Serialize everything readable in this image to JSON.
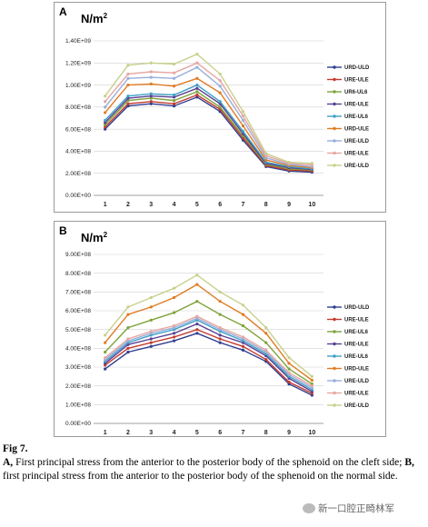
{
  "chart_data": [
    {
      "panel": "A",
      "type": "line",
      "ylabel": "N/m",
      "ylabel_sup": "2",
      "categories": [
        "1",
        "2",
        "3",
        "4",
        "5",
        "6",
        "7",
        "8",
        "9",
        "10"
      ],
      "ylim": [
        0,
        1400000000.0
      ],
      "yticks": [
        0,
        200000000.0,
        400000000.0,
        600000000.0,
        800000000.0,
        1000000000.0,
        1200000000.0,
        1400000000.0
      ],
      "ytick_labels": [
        "0.00E+00",
        "2.00E+08",
        "4.00E+08",
        "6.00E+08",
        "8.00E+08",
        "1.00E+09",
        "1.20E+09",
        "1.40E+09"
      ],
      "grid": true,
      "legend": "right",
      "series": [
        {
          "name": "URD-ULD",
          "color": "#2f3f8f",
          "values": [
            600000000.0,
            810000000.0,
            830000000.0,
            810000000.0,
            890000000.0,
            760000000.0,
            500000000.0,
            260000000.0,
            220000000.0,
            210000000.0
          ]
        },
        {
          "name": "URE-ULE",
          "color": "#c23b30",
          "values": [
            620000000.0,
            830000000.0,
            850000000.0,
            830000000.0,
            910000000.0,
            780000000.0,
            520000000.0,
            270000000.0,
            230000000.0,
            220000000.0
          ]
        },
        {
          "name": "UR6-UL6",
          "color": "#7ea33a",
          "values": [
            640000000.0,
            860000000.0,
            880000000.0,
            860000000.0,
            940000000.0,
            800000000.0,
            540000000.0,
            280000000.0,
            240000000.0,
            230000000.0
          ]
        },
        {
          "name": "URE-ULE",
          "color": "#5a3f94",
          "values": [
            660000000.0,
            880000000.0,
            900000000.0,
            890000000.0,
            970000000.0,
            830000000.0,
            560000000.0,
            290000000.0,
            250000000.0,
            235000000.0
          ]
        },
        {
          "name": "URE-UL6",
          "color": "#3fa0c6",
          "values": [
            680000000.0,
            900000000.0,
            920000000.0,
            910000000.0,
            1000000000.0,
            850000000.0,
            580000000.0,
            300000000.0,
            260000000.0,
            240000000.0
          ]
        },
        {
          "name": "URD-ULE",
          "color": "#e07b22",
          "values": [
            750000000.0,
            1000000000.0,
            1010000000.0,
            990000000.0,
            1060000000.0,
            930000000.0,
            630000000.0,
            320000000.0,
            270000000.0,
            250000000.0
          ]
        },
        {
          "name": "URE-ULD",
          "color": "#9aaedb",
          "values": [
            800000000.0,
            1060000000.0,
            1070000000.0,
            1060000000.0,
            1160000000.0,
            990000000.0,
            680000000.0,
            340000000.0,
            280000000.0,
            260000000.0
          ]
        },
        {
          "name": "URE-ULE",
          "color": "#e6a6a0",
          "values": [
            850000000.0,
            1100000000.0,
            1120000000.0,
            1110000000.0,
            1200000000.0,
            1040000000.0,
            720000000.0,
            360000000.0,
            290000000.0,
            275000000.0
          ]
        },
        {
          "name": "URE-ULD",
          "color": "#c8d08c",
          "values": [
            900000000.0,
            1180000000.0,
            1200000000.0,
            1190000000.0,
            1280000000.0,
            1100000000.0,
            760000000.0,
            380000000.0,
            300000000.0,
            290000000.0
          ]
        }
      ]
    },
    {
      "panel": "B",
      "type": "line",
      "ylabel": "N/m",
      "ylabel_sup": "2",
      "categories": [
        "1",
        "2",
        "3",
        "4",
        "5",
        "6",
        "7",
        "8",
        "9",
        "10"
      ],
      "ylim": [
        0,
        900000000.0
      ],
      "yticks": [
        0,
        100000000.0,
        200000000.0,
        300000000.0,
        400000000.0,
        500000000.0,
        600000000.0,
        700000000.0,
        800000000.0,
        900000000.0
      ],
      "ytick_labels": [
        "0.00E+00",
        "1.00E+08",
        "2.00E+08",
        "3.00E+08",
        "4.00E+08",
        "5.00E+08",
        "6.00E+08",
        "7.00E+08",
        "8.00E+08",
        "9.00E+08"
      ],
      "grid": true,
      "legend": "right",
      "series": [
        {
          "name": "URD-ULD",
          "color": "#2f3f8f",
          "values": [
            290000000.0,
            380000000.0,
            410000000.0,
            440000000.0,
            480000000.0,
            430000000.0,
            390000000.0,
            330000000.0,
            210000000.0,
            150000000.0
          ]
        },
        {
          "name": "URE-ULE",
          "color": "#c23b30",
          "values": [
            310000000.0,
            400000000.0,
            430000000.0,
            460000000.0,
            500000000.0,
            450000000.0,
            410000000.0,
            340000000.0,
            220000000.0,
            160000000.0
          ]
        },
        {
          "name": "URE-UL6",
          "color": "#7ea33a",
          "values": [
            380000000.0,
            510000000.0,
            550000000.0,
            590000000.0,
            650000000.0,
            580000000.0,
            520000000.0,
            430000000.0,
            290000000.0,
            210000000.0
          ]
        },
        {
          "name": "URE-ULE",
          "color": "#5a3f94",
          "values": [
            320000000.0,
            420000000.0,
            450000000.0,
            480000000.0,
            530000000.0,
            470000000.0,
            430000000.0,
            360000000.0,
            240000000.0,
            170000000.0
          ]
        },
        {
          "name": "URE-UL6",
          "color": "#3fa0c6",
          "values": [
            330000000.0,
            430000000.0,
            470000000.0,
            500000000.0,
            550000000.0,
            490000000.0,
            440000000.0,
            370000000.0,
            250000000.0,
            180000000.0
          ]
        },
        {
          "name": "URD-ULE",
          "color": "#e07b22",
          "values": [
            430000000.0,
            580000000.0,
            620000000.0,
            670000000.0,
            740000000.0,
            650000000.0,
            580000000.0,
            480000000.0,
            320000000.0,
            230000000.0
          ]
        },
        {
          "name": "URE-ULD",
          "color": "#9aaedb",
          "values": [
            340000000.0,
            440000000.0,
            480000000.0,
            510000000.0,
            560000000.0,
            500000000.0,
            450000000.0,
            380000000.0,
            260000000.0,
            190000000.0
          ]
        },
        {
          "name": "URE-ULE",
          "color": "#e6a6a0",
          "values": [
            350000000.0,
            450000000.0,
            490000000.0,
            520000000.0,
            570000000.0,
            510000000.0,
            460000000.0,
            390000000.0,
            270000000.0,
            200000000.0
          ]
        },
        {
          "name": "URE-ULD",
          "color": "#c8d08c",
          "values": [
            470000000.0,
            620000000.0,
            670000000.0,
            720000000.0,
            790000000.0,
            700000000.0,
            630000000.0,
            510000000.0,
            350000000.0,
            250000000.0
          ]
        }
      ]
    }
  ],
  "caption": {
    "fig_title": "Fig 7.",
    "a_letter": "A,",
    "a_text": " First principal stress from the anterior to the posterior body of the sphenoid on the cleft side; ",
    "b_letter": "B,",
    "b_text": " first principal stress from the anterior to the posterior body of the sphenoid on the normal side."
  },
  "watermark": {
    "text": "新一口腔正畸林军"
  }
}
